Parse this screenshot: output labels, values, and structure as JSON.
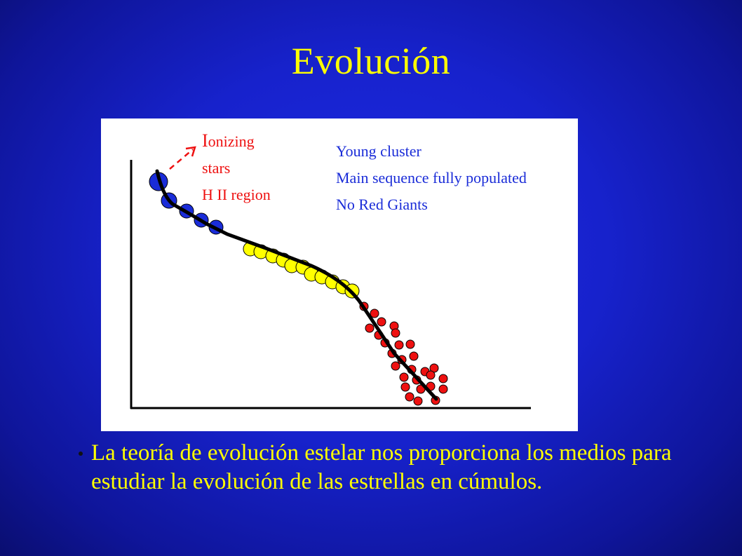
{
  "slide": {
    "title": "Evolución",
    "bullet": "La teoría de evolución estelar nos proporciona los medios para estudiar la evolución de las estrellas en cúmulos."
  },
  "figure": {
    "labels": {
      "ionizing_1": "I",
      "ionizing_2": "onizing",
      "stars": "stars",
      "hii": "H II region"
    },
    "notes": [
      "Young cluster",
      "Main sequence fully populated",
      "No Red Giants"
    ],
    "colors": {
      "blue_stars": "#1a2cd8",
      "yellow_stars": "#ffff00",
      "red_stars": "#ee1111",
      "notes": "#1a2cd8",
      "labels": "#ee1111",
      "sequence_line": "#000000"
    }
  }
}
